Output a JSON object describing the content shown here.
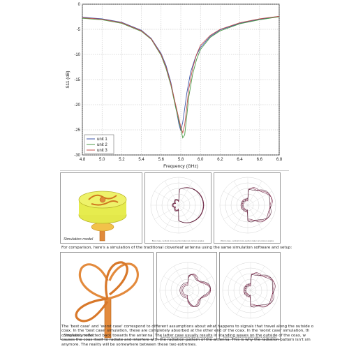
{
  "chart_data": {
    "type": "line",
    "xlabel": "Frequency (GHz)",
    "ylabel": "S11 (dB)",
    "xlim": [
      4.8,
      6.8
    ],
    "ylim": [
      -30,
      0
    ],
    "xticks": [
      "4.8",
      "5.0",
      "5.2",
      "5.4",
      "5.6",
      "5.8",
      "6.0",
      "6.2",
      "6.4",
      "6.6",
      "6.8"
    ],
    "yticks": [
      "0",
      "-5",
      "-10",
      "-15",
      "-20",
      "-25",
      "-30"
    ],
    "grid": true,
    "legend_position": "lower-left",
    "series": [
      {
        "name": "unit 1",
        "color": "#3d55a8",
        "x": [
          4.8,
          5.0,
          5.2,
          5.4,
          5.5,
          5.6,
          5.65,
          5.7,
          5.75,
          5.78,
          5.8,
          5.82,
          5.84,
          5.86,
          5.9,
          5.95,
          6.0,
          6.1,
          6.2,
          6.4,
          6.6,
          6.8
        ],
        "y": [
          -2.6,
          -2.9,
          -3.6,
          -5.2,
          -6.8,
          -9.8,
          -12.2,
          -15.6,
          -20.5,
          -23.8,
          -25.2,
          -23.5,
          -20.8,
          -17.8,
          -13.5,
          -10.5,
          -8.6,
          -6.4,
          -5.1,
          -3.8,
          -3.0,
          -2.4
        ]
      },
      {
        "name": "unit 2",
        "color": "#4c9a47",
        "x": [
          4.8,
          5.0,
          5.2,
          5.4,
          5.5,
          5.6,
          5.65,
          5.7,
          5.75,
          5.8,
          5.82,
          5.84,
          5.86,
          5.88,
          5.92,
          5.96,
          6.0,
          6.1,
          6.2,
          6.4,
          6.6,
          6.8
        ],
        "y": [
          -2.8,
          -3.1,
          -3.8,
          -5.4,
          -7.0,
          -10.2,
          -12.8,
          -16.2,
          -20.8,
          -24.8,
          -26.6,
          -26.0,
          -22.4,
          -18.6,
          -14.0,
          -11.0,
          -9.0,
          -6.6,
          -5.3,
          -3.9,
          -3.1,
          -2.5
        ]
      },
      {
        "name": "unit 3",
        "color": "#c0504d",
        "x": [
          4.8,
          5.0,
          5.2,
          5.4,
          5.5,
          5.6,
          5.65,
          5.7,
          5.75,
          5.8,
          5.82,
          5.84,
          5.86,
          5.88,
          5.92,
          5.96,
          6.0,
          6.1,
          6.2,
          6.4,
          6.6,
          6.8
        ],
        "y": [
          -2.7,
          -3.0,
          -3.7,
          -5.3,
          -6.9,
          -10.0,
          -12.5,
          -15.9,
          -20.2,
          -24.4,
          -25.6,
          -24.0,
          -20.6,
          -17.0,
          -12.8,
          -10.0,
          -8.2,
          -6.2,
          -5.0,
          -3.7,
          -2.9,
          -2.4
        ]
      }
    ]
  },
  "sections": {
    "row1": {
      "model_caption": "Simulation model",
      "polar_captions": [
        "Best case, vertical cross-section taken at various angles",
        "Worst case, vertical cross-section taken at various angles"
      ]
    },
    "para1": "For comparison, here's a simulation of the traditional cloverleaf antenna using the same simulation software and setup:",
    "row2": {
      "model_caption": "Simulation model",
      "polar_captions": [
        "Best case, vertical cross-section taken at various angles",
        "Worst case, vertical cross-section taken at various angles"
      ]
    },
    "para2_lines": [
      "The 'best case' and 'worst case' correspond to different assumptions about what happens to signals that travel along the outside o",
      "coax. In the 'best case' simulation, these are completely absorbed at the other end of the coax. In the 'worst case' simulation, th",
      "completely reflected back towards the antenna. The latter case usually results in standing waves on the outside of the coax, w",
      "causes the coax itself to radiate and interfere with the radiation pattern of the antenna. This is why the radiation pattern isn't sm",
      "anymore. The reality will be somewhere between these two extremes."
    ]
  }
}
